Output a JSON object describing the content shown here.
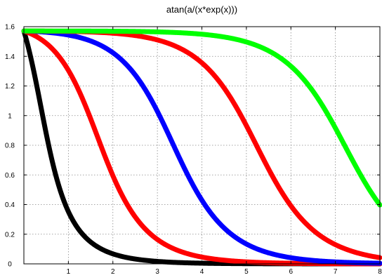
{
  "chart_data": {
    "type": "line",
    "title": "atan(a/(x*exp(x)))",
    "xlabel": "",
    "ylabel": "",
    "xlim": [
      0,
      8
    ],
    "ylim": [
      0,
      1.6
    ],
    "x_ticks": [
      1,
      2,
      3,
      4,
      5,
      6,
      7,
      8
    ],
    "y_ticks": [
      0,
      0.2,
      0.4,
      0.6,
      0.8,
      1,
      1.2,
      1.4,
      1.6
    ],
    "y_tick_labels": [
      "0",
      "0.2",
      "0.4",
      "0.6",
      "0.8",
      "1",
      "1.2",
      "1.4",
      "1.6"
    ],
    "grid": true,
    "legend": "none",
    "series": [
      {
        "a": 1,
        "color": "#000000"
      },
      {
        "a": 10,
        "color": "#ff0000"
      },
      {
        "a": 100,
        "color": "#0000ff"
      },
      {
        "a": 1000,
        "color": "#ff0000"
      },
      {
        "a": 10000,
        "color": "#00ff00"
      }
    ]
  }
}
